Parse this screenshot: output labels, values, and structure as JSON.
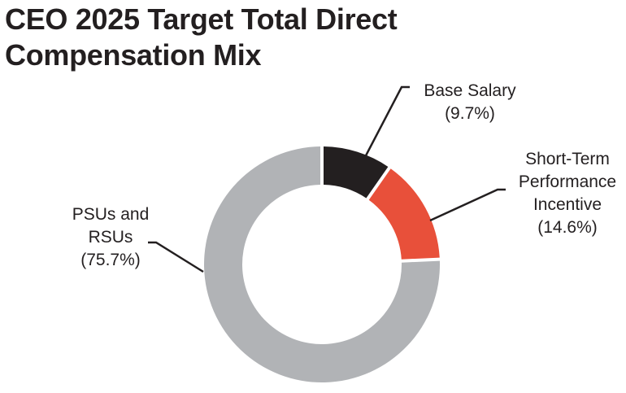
{
  "title_lines": [
    "CEO 2025 Target Total Direct",
    "Compensation Mix"
  ],
  "chart_data": {
    "type": "pie",
    "variant": "donut",
    "title": "CEO 2025 Target Total Direct Compensation Mix",
    "slices": [
      {
        "label": "Base Salary",
        "value": 9.7,
        "value_label": "(9.7%)",
        "label_lines": [
          "Base Salary"
        ],
        "color": "#231f20"
      },
      {
        "label": "Short-Term Performance Incentive",
        "value": 14.6,
        "value_label": "(14.6%)",
        "label_lines": [
          "Short-Term",
          "Performance",
          "Incentive"
        ],
        "color": "#e8503a"
      },
      {
        "label": "PSUs and RSUs",
        "value": 75.7,
        "value_label": "(75.7%)",
        "label_lines": [
          "PSUs and",
          "RSUs"
        ],
        "color": "#b1b3b6"
      }
    ],
    "start_angle_deg": 0,
    "direction": "clockwise",
    "legend": "none"
  }
}
